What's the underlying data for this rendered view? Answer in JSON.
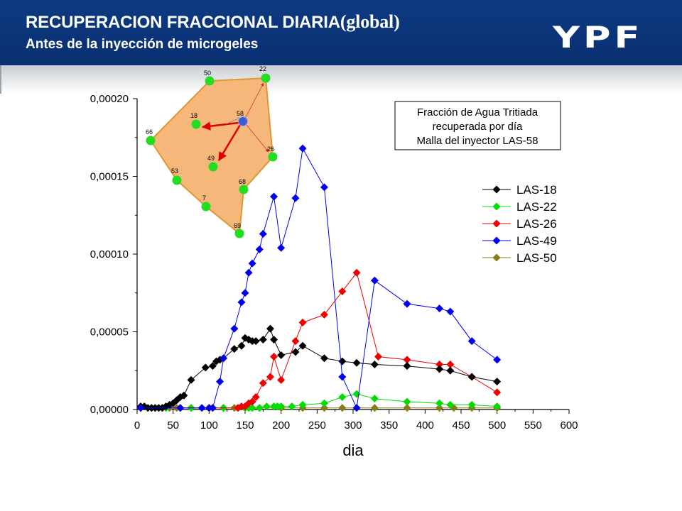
{
  "header": {
    "title": "RECUPERACION FRACCIONAL DIARIA",
    "title_suffix": "(global)",
    "subtitle": "Antes de la inyección de microgeles",
    "logo_text": "YPF",
    "background_color": "#0b3478"
  },
  "chart_data": {
    "type": "line",
    "xlabel": "dia",
    "ylabel": "",
    "xlim": [
      0,
      600
    ],
    "ylim": [
      0,
      0.0002
    ],
    "x_ticks": [
      "0",
      "50",
      "100",
      "150",
      "200",
      "250",
      "300",
      "350",
      "400",
      "450",
      "500",
      "550",
      "600"
    ],
    "y_ticks": [
      "0,00000",
      "0,00005",
      "0,00010",
      "0,00015",
      "0,00020"
    ],
    "annotation_box": [
      "Fracción de Agua Tritiada",
      "recuperada por día",
      "Malla del inyector LAS-58"
    ],
    "legend_placement": "right",
    "series": [
      {
        "name": "LAS-18",
        "color": "#000000",
        "points": [
          [
            5,
            2e-06
          ],
          [
            10,
            2e-06
          ],
          [
            15,
            1e-06
          ],
          [
            20,
            1e-06
          ],
          [
            25,
            1e-06
          ],
          [
            30,
            1e-06
          ],
          [
            35,
            1e-06
          ],
          [
            40,
            2e-06
          ],
          [
            45,
            3e-06
          ],
          [
            50,
            4e-06
          ],
          [
            55,
            6e-06
          ],
          [
            60,
            8e-06
          ],
          [
            65,
            9e-06
          ],
          [
            75,
            1.9e-05
          ],
          [
            95,
            2.7e-05
          ],
          [
            105,
            2.8e-05
          ],
          [
            110,
            3.1e-05
          ],
          [
            115,
            3.2e-05
          ],
          [
            120,
            3.3e-05
          ],
          [
            135,
            3.9e-05
          ],
          [
            145,
            4.1e-05
          ],
          [
            150,
            4.6e-05
          ],
          [
            155,
            4.5e-05
          ],
          [
            160,
            4.4e-05
          ],
          [
            165,
            4.4e-05
          ],
          [
            175,
            4.5e-05
          ],
          [
            185,
            5.2e-05
          ],
          [
            190,
            4.5e-05
          ],
          [
            200,
            3.5e-05
          ],
          [
            220,
            3.7e-05
          ],
          [
            230,
            4.1e-05
          ],
          [
            260,
            3.3e-05
          ],
          [
            285,
            3.1e-05
          ],
          [
            305,
            3e-05
          ],
          [
            330,
            2.9e-05
          ],
          [
            375,
            2.8e-05
          ],
          [
            420,
            2.6e-05
          ],
          [
            435,
            2.5e-05
          ],
          [
            465,
            2.1e-05
          ],
          [
            500,
            1.8e-05
          ]
        ]
      },
      {
        "name": "LAS-22",
        "color": "#00dd00",
        "points": [
          [
            5,
            1e-06
          ],
          [
            20,
            1e-06
          ],
          [
            40,
            1e-06
          ],
          [
            60,
            1e-06
          ],
          [
            75,
            1e-06
          ],
          [
            100,
            1e-06
          ],
          [
            120,
            1e-06
          ],
          [
            140,
            1e-06
          ],
          [
            150,
            1e-06
          ],
          [
            155,
            1e-06
          ],
          [
            160,
            1e-06
          ],
          [
            170,
            1e-06
          ],
          [
            180,
            2e-06
          ],
          [
            190,
            2e-06
          ],
          [
            195,
            2e-06
          ],
          [
            200,
            2e-06
          ],
          [
            215,
            2e-06
          ],
          [
            230,
            3e-06
          ],
          [
            260,
            4e-06
          ],
          [
            285,
            8e-06
          ],
          [
            305,
            1e-05
          ],
          [
            330,
            7e-06
          ],
          [
            375,
            5e-06
          ],
          [
            420,
            4e-06
          ],
          [
            435,
            3e-06
          ],
          [
            465,
            3e-06
          ],
          [
            500,
            2e-06
          ]
        ]
      },
      {
        "name": "LAS-26",
        "color": "#ee0000",
        "points": [
          [
            5,
            1e-06
          ],
          [
            60,
            1e-06
          ],
          [
            100,
            1e-06
          ],
          [
            140,
            1e-06
          ],
          [
            145,
            2e-06
          ],
          [
            150,
            2e-06
          ],
          [
            155,
            4e-06
          ],
          [
            160,
            5e-06
          ],
          [
            165,
            8e-06
          ],
          [
            175,
            1.7e-05
          ],
          [
            185,
            2.1e-05
          ],
          [
            190,
            3.4e-05
          ],
          [
            200,
            1.9e-05
          ],
          [
            220,
            4.4e-05
          ],
          [
            230,
            5.6e-05
          ],
          [
            260,
            6.1e-05
          ],
          [
            285,
            7.6e-05
          ],
          [
            305,
            8.8e-05
          ],
          [
            335,
            3.4e-05
          ],
          [
            375,
            3.2e-05
          ],
          [
            420,
            2.9e-05
          ],
          [
            435,
            2.9e-05
          ],
          [
            465,
            2.1e-05
          ],
          [
            500,
            1.1e-05
          ]
        ]
      },
      {
        "name": "LAS-49",
        "color": "#0000ee",
        "points": [
          [
            5,
            1e-06
          ],
          [
            60,
            1e-06
          ],
          [
            90,
            1e-06
          ],
          [
            100,
            1e-06
          ],
          [
            105,
            1e-06
          ],
          [
            115,
            1.8e-05
          ],
          [
            120,
            3.3e-05
          ],
          [
            135,
            5.2e-05
          ],
          [
            145,
            6.9e-05
          ],
          [
            150,
            7.5e-05
          ],
          [
            155,
            8.8e-05
          ],
          [
            160,
            9.4e-05
          ],
          [
            170,
            0.000103
          ],
          [
            175,
            0.000113
          ],
          [
            190,
            0.000137
          ],
          [
            200,
            0.000104
          ],
          [
            220,
            0.000136
          ],
          [
            230,
            0.000168
          ],
          [
            260,
            0.000143
          ],
          [
            285,
            2.1e-05
          ],
          [
            305,
            1e-06
          ],
          [
            330,
            8.3e-05
          ],
          [
            375,
            6.8e-05
          ],
          [
            420,
            6.5e-05
          ],
          [
            435,
            6.3e-05
          ],
          [
            465,
            4.4e-05
          ],
          [
            500,
            3.2e-05
          ]
        ]
      },
      {
        "name": "LAS-50",
        "color": "#8b7a1a",
        "points": [
          [
            5,
            1e-06
          ],
          [
            15,
            1e-06
          ],
          [
            25,
            1e-06
          ],
          [
            35,
            1e-06
          ],
          [
            45,
            1e-06
          ],
          [
            55,
            1e-06
          ],
          [
            75,
            1e-06
          ],
          [
            105,
            1e-06
          ],
          [
            120,
            1e-06
          ],
          [
            135,
            1e-06
          ],
          [
            150,
            1e-06
          ],
          [
            170,
            1e-06
          ],
          [
            200,
            1e-06
          ],
          [
            230,
            1e-06
          ],
          [
            260,
            1e-06
          ],
          [
            285,
            1e-06
          ],
          [
            305,
            1e-06
          ],
          [
            330,
            1e-06
          ],
          [
            375,
            1e-06
          ],
          [
            420,
            1e-06
          ],
          [
            440,
            1e-06
          ],
          [
            465,
            1e-06
          ],
          [
            500,
            1e-06
          ]
        ]
      }
    ]
  },
  "inset_map": {
    "fill_color": "#f5b87a",
    "outline_color": "#e0962e",
    "injector": "58",
    "wells": [
      "50",
      "22",
      "18",
      "58",
      "66",
      "26",
      "49",
      "53",
      "68",
      "7",
      "69"
    ]
  }
}
